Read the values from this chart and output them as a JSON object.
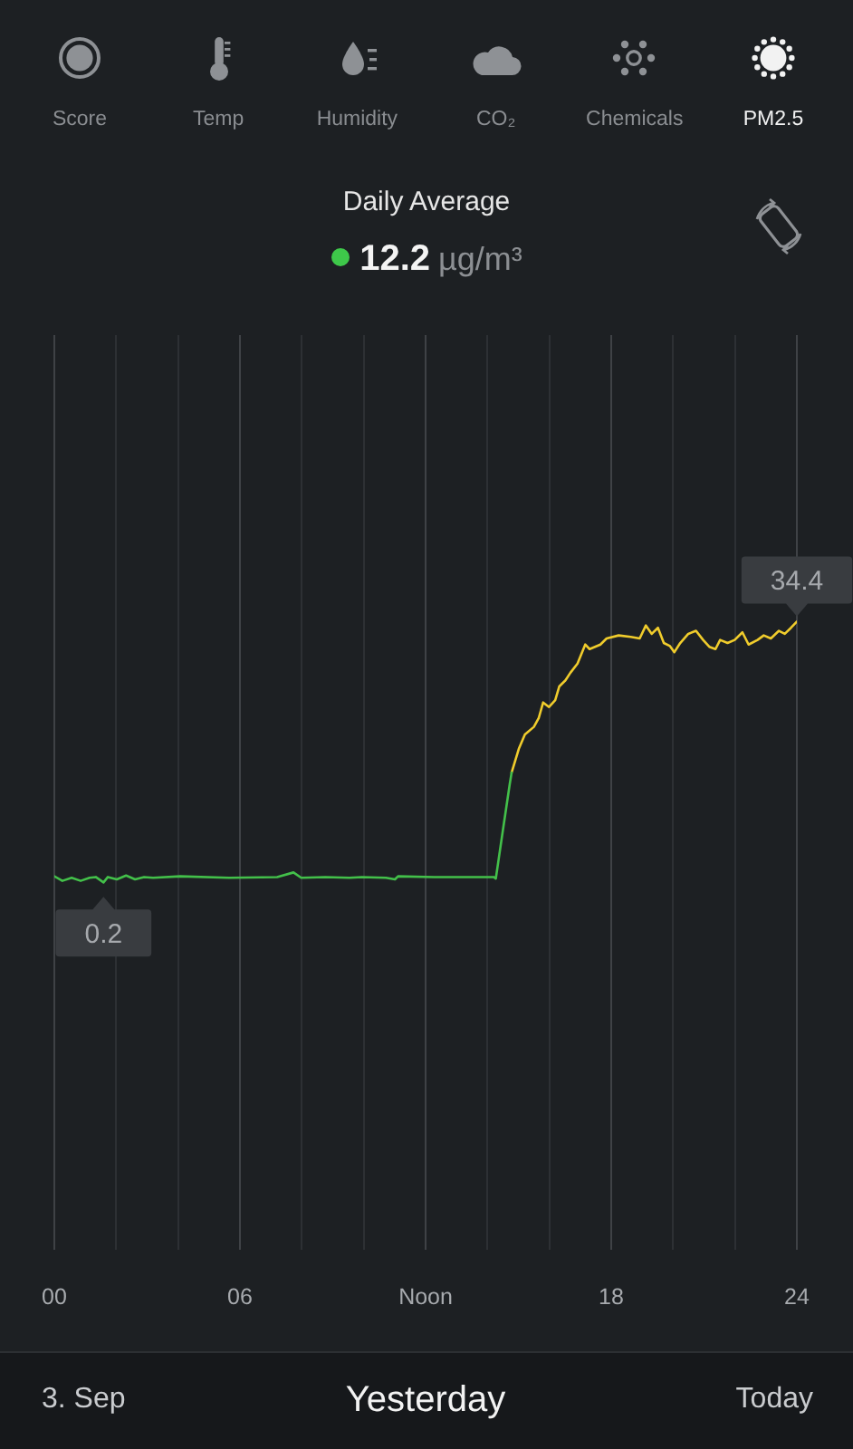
{
  "chart_data": {
    "type": "line",
    "title": "Daily Average",
    "subtitle": "12.2 µg/m³",
    "annotations": [
      "Score",
      "Temp",
      "Humidity",
      "CO₂",
      "Chemicals",
      "PM2.5",
      "3. Sep",
      "Yesterday",
      "Today"
    ],
    "xlim": [
      0,
      24
    ],
    "xticks": [
      {
        "value": 0,
        "label": "00"
      },
      {
        "value": 2,
        "label": null
      },
      {
        "value": 4,
        "label": null
      },
      {
        "value": 6,
        "label": "06"
      },
      {
        "value": 8,
        "label": null
      },
      {
        "value": 10,
        "label": null
      },
      {
        "value": 12,
        "label": "Noon"
      },
      {
        "value": 14,
        "label": null
      },
      {
        "value": 16,
        "label": null
      },
      {
        "value": 18,
        "label": "18"
      },
      {
        "value": 20,
        "label": null
      },
      {
        "value": 22,
        "label": null
      },
      {
        "value": 24,
        "label": "24"
      }
    ],
    "ylim": [
      -48,
      72
    ],
    "grid": "x",
    "tick_labels": "x",
    "marker": "none",
    "line_style": "solid",
    "legend": false,
    "series": [
      {
        "color": "#43c04a",
        "x": [
          0,
          0.26,
          0.56,
          0.85,
          1.14,
          1.34,
          1.59,
          1.73,
          2.02,
          2.32,
          2.61,
          2.9,
          3.19,
          4.07,
          5.64,
          7.2,
          7.73,
          7.98,
          8.76,
          9.54,
          9.94,
          10.72,
          11.01,
          11.11,
          12.28,
          14.2,
          14.27,
          14.49,
          14.72,
          14.78
        ],
        "values": [
          1.0,
          0.4,
          0.8,
          0.4,
          0.8,
          0.9,
          0.2,
          0.9,
          0.6,
          1.1,
          0.6,
          0.9,
          0.8,
          1.0,
          0.8,
          0.9,
          1.5,
          0.8,
          0.9,
          0.8,
          0.9,
          0.8,
          0.6,
          1.0,
          0.9,
          0.9,
          0.7,
          6.8,
          13.1,
          14.6
        ],
        "value_labels": [
          null,
          null,
          null,
          null,
          null,
          null,
          "0.2",
          null,
          null,
          null,
          null,
          null,
          null,
          null,
          null,
          null,
          null,
          null,
          null,
          null,
          null,
          null,
          null,
          null,
          null,
          null,
          null,
          null,
          null,
          null
        ]
      },
      {
        "color": "#f0cc2c",
        "x": [
          14.78,
          15.02,
          15.21,
          15.5,
          15.66,
          15.8,
          15.99,
          16.19,
          16.32,
          16.52,
          16.68,
          16.91,
          17.16,
          17.3,
          17.65,
          17.85,
          18.24,
          18.63,
          18.92,
          19.12,
          19.31,
          19.51,
          19.7,
          19.9,
          20.04,
          20.23,
          20.49,
          20.74,
          20.97,
          21.17,
          21.37,
          21.52,
          21.76,
          21.99,
          22.24,
          22.44,
          22.73,
          22.93,
          23.16,
          23.42,
          23.61,
          23.81,
          24
        ],
        "values": [
          14.6,
          17.8,
          19.6,
          20.6,
          21.8,
          23.8,
          23.2,
          24.1,
          25.9,
          26.7,
          27.7,
          28.9,
          31.4,
          30.8,
          31.4,
          32.2,
          32.6,
          32.4,
          32.2,
          33.9,
          32.8,
          33.6,
          31.6,
          31.2,
          30.4,
          31.6,
          32.8,
          33.2,
          32.0,
          31.1,
          30.8,
          32.0,
          31.6,
          32.0,
          33.0,
          31.4,
          32.0,
          32.6,
          32.2,
          33.2,
          32.8,
          33.6,
          34.4
        ],
        "value_labels": [
          null,
          null,
          null,
          null,
          null,
          null,
          null,
          null,
          null,
          null,
          null,
          null,
          null,
          null,
          null,
          null,
          null,
          null,
          null,
          null,
          null,
          null,
          null,
          null,
          null,
          null,
          null,
          null,
          null,
          null,
          null,
          null,
          null,
          null,
          null,
          null,
          null,
          null,
          null,
          null,
          null,
          null,
          "34.4"
        ]
      }
    ]
  }
}
